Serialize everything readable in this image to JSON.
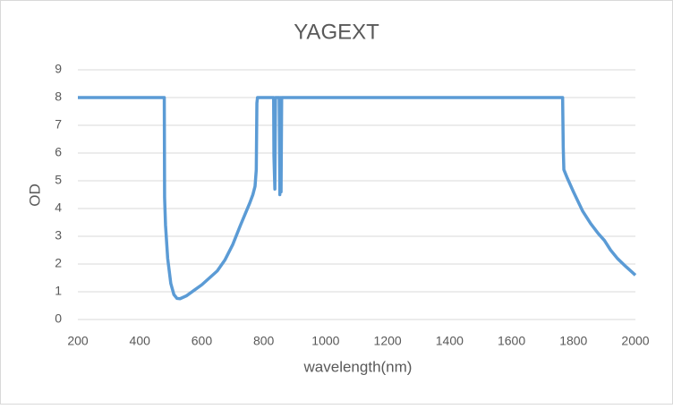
{
  "chart_data": {
    "type": "line",
    "title": "YAGEXT",
    "x_label": "wavelength(nm)",
    "y_label": "OD",
    "xlim": [
      200,
      2000
    ],
    "xticks": [
      200,
      400,
      600,
      800,
      1000,
      1200,
      1400,
      1600,
      1800,
      2000
    ],
    "ylim": [
      0,
      9
    ],
    "yticks": [
      0,
      1,
      2,
      3,
      4,
      5,
      6,
      7,
      8,
      9
    ],
    "grid": true,
    "series": [
      {
        "name": "YAGEXT",
        "color": "#5b9bd5",
        "x": [
          200,
          479,
          480,
          483,
          490,
          500,
          510,
          520,
          530,
          550,
          575,
          600,
          625,
          650,
          675,
          700,
          725,
          740,
          755,
          765,
          772,
          776,
          778,
          780,
          832,
          833,
          836,
          838,
          840,
          850,
          852,
          854,
          856,
          858,
          1765,
          1767,
          1769,
          1780,
          1800,
          1830,
          1856,
          1880,
          1900,
          1920,
          1942,
          1970,
          2000
        ],
        "values": [
          8,
          8,
          4.4,
          3.4,
          2.2,
          1.3,
          0.9,
          0.76,
          0.75,
          0.85,
          1.05,
          1.25,
          1.5,
          1.75,
          2.15,
          2.7,
          3.4,
          3.8,
          4.2,
          4.5,
          4.8,
          5.4,
          7.8,
          8,
          8,
          5.9,
          4.7,
          8,
          8,
          8,
          4.5,
          8,
          4.6,
          8,
          8,
          6.2,
          5.4,
          5.1,
          4.6,
          3.9,
          3.45,
          3.1,
          2.85,
          2.5,
          2.2,
          1.9,
          1.6
        ]
      }
    ]
  }
}
